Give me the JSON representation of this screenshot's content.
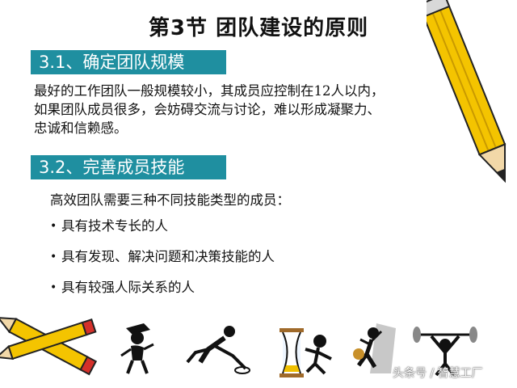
{
  "title": "第3节  团队建设的原则",
  "colors": {
    "accent": "#1f8fa0",
    "pencil_yellow": "#f4c400",
    "pencil_red": "#d4302a"
  },
  "sections": [
    {
      "heading": "3.1、确定团队规模"
    },
    {
      "heading": "3.2、完善成员技能"
    }
  ],
  "paragraph": {
    "line1": "最好的工作团队一般规模较小，其成员应控制在12人以内，",
    "line2": "如果团队成员很多，会妨碍交流与讨论，难以形成凝聚力、",
    "line3": "忠诚和信赖感。"
  },
  "intro": "高效团队需要三种不同技能类型的成员：",
  "bullets": [
    "具有技术专长的人",
    "具有发现、解决问题和决策技能的人",
    "具有较强人际关系的人"
  ],
  "bullet_glyph": "•",
  "watermark": "头条号 / 智慧工厂",
  "icons": [
    "pencil-icon",
    "graduate-figure-icon",
    "runner-figure-icon",
    "hourglass-figure-icon",
    "climber-figure-icon",
    "weightlifter-figure-icon"
  ]
}
